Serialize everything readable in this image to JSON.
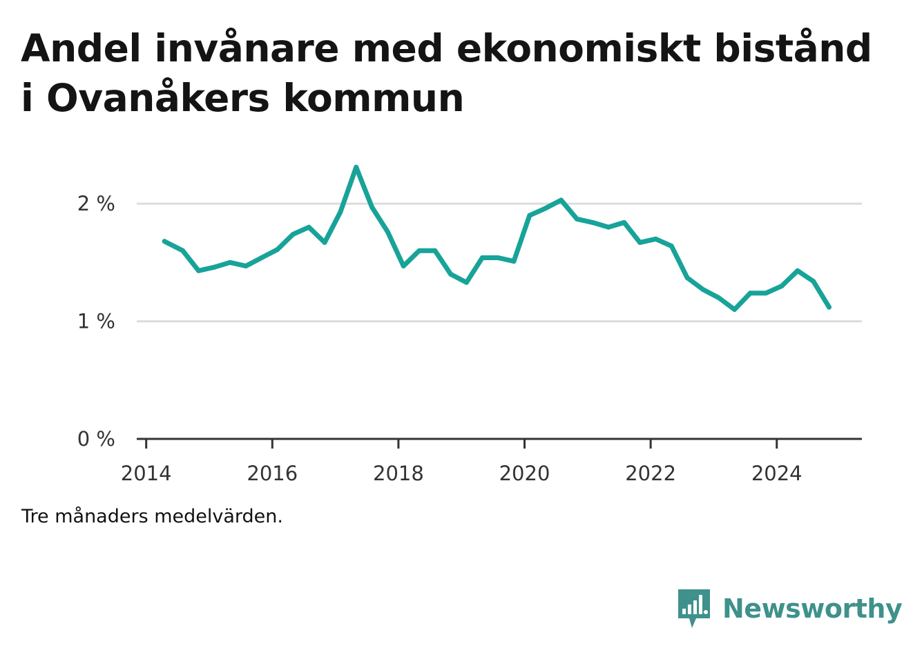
{
  "title": "Andel invånare med ekonomiskt bistånd i Ovanåkers kommun",
  "note": "Tre månaders medelvärden.",
  "brand": {
    "name": "Newsworthy",
    "icon": "bar-chart-speech-bubble-icon",
    "color": "#3f918b"
  },
  "colors": {
    "line": "#18a399",
    "grid": "#dcdcdc",
    "axis": "#333333",
    "tick_text": "#333333"
  },
  "chart_data": {
    "type": "line",
    "title": "Andel invånare med ekonomiskt bistånd i Ovanåkers kommun",
    "xlabel": "",
    "ylabel": "",
    "xlim": [
      2013.85,
      2025.35
    ],
    "ylim": [
      0,
      2.3
    ],
    "x_ticks": [
      2014,
      2016,
      2018,
      2020,
      2022,
      2024
    ],
    "x_tick_labels": [
      "2014",
      "2016",
      "2018",
      "2020",
      "2022",
      "2024"
    ],
    "y_ticks": [
      0,
      1,
      2
    ],
    "y_tick_labels": [
      "0 %",
      "1 %",
      "2 %"
    ],
    "grid": "horizontal",
    "legend": "none",
    "series": [
      {
        "name": "",
        "x": [
          2014.29,
          2014.58,
          2014.83,
          2015.08,
          2015.33,
          2015.58,
          2015.83,
          2016.08,
          2016.33,
          2016.58,
          2016.83,
          2017.08,
          2017.33,
          2017.58,
          2017.83,
          2018.08,
          2018.33,
          2018.58,
          2018.83,
          2019.08,
          2019.33,
          2019.58,
          2019.83,
          2020.08,
          2020.33,
          2020.58,
          2020.83,
          2021.08,
          2021.33,
          2021.58,
          2021.83,
          2022.08,
          2022.33,
          2022.58,
          2022.83,
          2023.08,
          2023.33,
          2023.58,
          2023.83,
          2024.08,
          2024.33,
          2024.58,
          2024.83
        ],
        "values": [
          1.68,
          1.6,
          1.43,
          1.46,
          1.5,
          1.47,
          1.54,
          1.61,
          1.74,
          1.8,
          1.67,
          1.93,
          2.31,
          1.97,
          1.76,
          1.47,
          1.6,
          1.6,
          1.4,
          1.33,
          1.54,
          1.54,
          1.51,
          1.9,
          1.96,
          2.03,
          1.87,
          1.84,
          1.8,
          1.84,
          1.67,
          1.7,
          1.64,
          1.37,
          1.27,
          1.2,
          1.1,
          1.24,
          1.24,
          1.3,
          1.43,
          1.34,
          1.12
        ]
      }
    ]
  }
}
